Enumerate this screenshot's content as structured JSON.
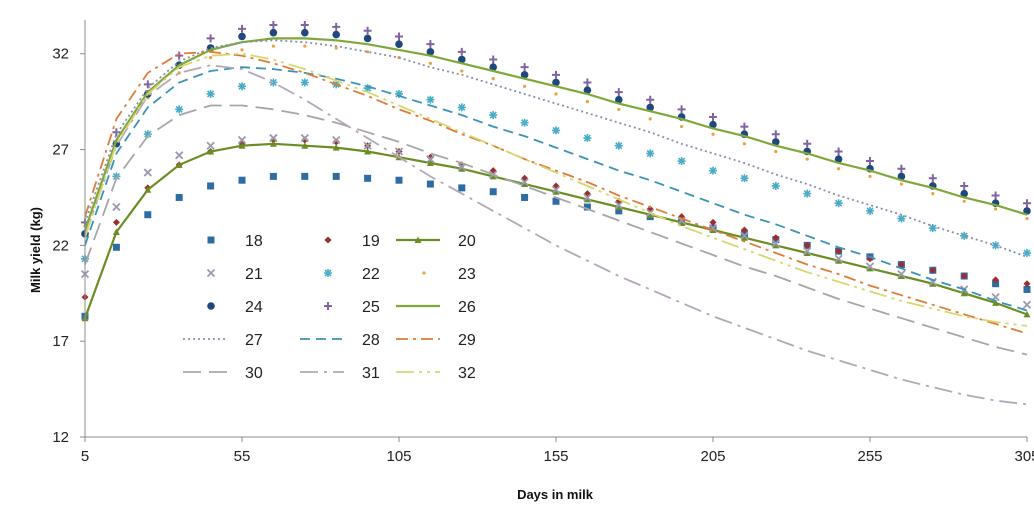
{
  "chart_data": {
    "type": "line",
    "title": "",
    "xlabel": "Days in milk",
    "ylabel": "Milk yield (kg)",
    "xlim": [
      5,
      305
    ],
    "ylim": [
      12,
      33.5
    ],
    "xticks": [
      5,
      55,
      105,
      155,
      205,
      255,
      305
    ],
    "yticks": [
      12,
      17,
      22,
      27,
      32
    ],
    "grid": false,
    "legend_position": "bottom-left",
    "x": [
      5,
      15,
      25,
      35,
      45,
      55,
      65,
      75,
      85,
      95,
      105,
      115,
      125,
      135,
      145,
      155,
      165,
      175,
      185,
      195,
      205,
      215,
      225,
      235,
      245,
      255,
      265,
      275,
      285,
      295,
      305
    ],
    "series": [
      {
        "name": "18",
        "color": "#2e6da4",
        "style": "square-markers",
        "values": [
          18.3,
          21.9,
          23.6,
          24.5,
          25.1,
          25.4,
          25.6,
          25.6,
          25.6,
          25.5,
          25.4,
          25.2,
          25.0,
          24.8,
          24.5,
          24.3,
          24.0,
          23.8,
          23.5,
          23.2,
          22.9,
          22.6,
          22.3,
          22.0,
          21.7,
          21.4,
          21.0,
          20.7,
          20.4,
          20.0,
          19.7
        ]
      },
      {
        "name": "19",
        "color": "#a02d2d",
        "style": "diamond-markers",
        "values": [
          19.3,
          23.2,
          25.0,
          26.2,
          26.9,
          27.3,
          27.5,
          27.5,
          27.4,
          27.2,
          26.9,
          26.6,
          26.2,
          25.9,
          25.5,
          25.1,
          24.7,
          24.3,
          23.9,
          23.5,
          23.2,
          22.8,
          22.4,
          22.0,
          21.7,
          21.3,
          21.0,
          20.7,
          20.4,
          20.2,
          20.0
        ]
      },
      {
        "name": "20",
        "color": "#6b8e23",
        "style": "line-triangle-markers",
        "values": [
          18.2,
          22.7,
          24.9,
          26.2,
          26.9,
          27.2,
          27.3,
          27.2,
          27.1,
          26.9,
          26.6,
          26.3,
          26.0,
          25.6,
          25.2,
          24.8,
          24.4,
          24.0,
          23.6,
          23.2,
          22.8,
          22.4,
          22.0,
          21.6,
          21.2,
          20.8,
          20.4,
          20.0,
          19.5,
          19.0,
          18.4
        ]
      },
      {
        "name": "21",
        "color": "#9a9ab0",
        "style": "x-markers",
        "values": [
          20.5,
          24.0,
          25.8,
          26.7,
          27.2,
          27.5,
          27.6,
          27.6,
          27.5,
          27.2,
          26.9,
          26.5,
          26.1,
          25.7,
          25.3,
          24.9,
          24.5,
          24.1,
          23.7,
          23.3,
          22.9,
          22.5,
          22.1,
          21.7,
          21.3,
          20.9,
          20.5,
          20.1,
          19.7,
          19.3,
          18.9
        ]
      },
      {
        "name": "22",
        "color": "#4bacc6",
        "style": "star-markers",
        "values": [
          21.3,
          25.6,
          27.8,
          29.1,
          29.9,
          30.3,
          30.5,
          30.5,
          30.4,
          30.2,
          29.9,
          29.6,
          29.2,
          28.8,
          28.4,
          28.0,
          27.6,
          27.2,
          26.8,
          26.4,
          25.9,
          25.5,
          25.1,
          24.7,
          24.2,
          23.8,
          23.4,
          22.9,
          22.5,
          22.0,
          21.6
        ]
      },
      {
        "name": "23",
        "color": "#e8a33c",
        "style": "dot-markers",
        "values": [
          23.0,
          27.4,
          29.7,
          31.0,
          31.8,
          32.2,
          32.4,
          32.4,
          32.3,
          32.1,
          31.8,
          31.5,
          31.1,
          30.7,
          30.3,
          29.9,
          29.5,
          29.1,
          28.6,
          28.2,
          27.8,
          27.3,
          26.9,
          26.5,
          26.0,
          25.6,
          25.2,
          24.7,
          24.3,
          23.9,
          23.4
        ]
      },
      {
        "name": "24",
        "color": "#1f497d",
        "style": "circle-markers",
        "values": [
          22.6,
          27.3,
          29.9,
          31.4,
          32.3,
          32.9,
          33.1,
          33.1,
          33.0,
          32.8,
          32.5,
          32.1,
          31.7,
          31.3,
          30.9,
          30.5,
          30.1,
          29.6,
          29.2,
          28.7,
          28.3,
          27.8,
          27.4,
          26.9,
          26.5,
          26.0,
          25.6,
          25.1,
          24.7,
          24.2,
          23.8
        ]
      },
      {
        "name": "25",
        "color": "#8064a2",
        "style": "plus-markers",
        "values": [
          23.2,
          27.9,
          30.4,
          31.9,
          32.8,
          33.3,
          33.5,
          33.5,
          33.4,
          33.2,
          32.9,
          32.5,
          32.1,
          31.7,
          31.3,
          30.9,
          30.5,
          30.0,
          29.6,
          29.1,
          28.7,
          28.2,
          27.8,
          27.3,
          26.9,
          26.4,
          26.0,
          25.5,
          25.1,
          24.6,
          24.2
        ]
      },
      {
        "name": "26",
        "color": "#7fa83a",
        "style": "solid",
        "values": [
          22.8,
          27.5,
          30.0,
          31.4,
          32.2,
          32.6,
          32.8,
          32.8,
          32.7,
          32.5,
          32.2,
          31.9,
          31.5,
          31.1,
          30.7,
          30.3,
          29.9,
          29.4,
          29.0,
          28.6,
          28.1,
          27.7,
          27.2,
          26.8,
          26.3,
          25.9,
          25.4,
          25.0,
          24.5,
          24.1,
          23.6
        ]
      },
      {
        "name": "27",
        "color": "#8a8fa8",
        "style": "dotted",
        "values": [
          23.2,
          27.8,
          30.2,
          31.6,
          32.3,
          32.6,
          32.7,
          32.6,
          32.4,
          32.1,
          31.8,
          31.3,
          30.9,
          30.4,
          29.9,
          29.4,
          28.9,
          28.4,
          27.9,
          27.3,
          26.8,
          26.3,
          25.7,
          25.2,
          24.6,
          24.1,
          23.6,
          23.0,
          22.5,
          22.0,
          21.4
        ]
      },
      {
        "name": "28",
        "color": "#3a93b8",
        "style": "dashed",
        "values": [
          22.0,
          26.8,
          29.2,
          30.5,
          31.1,
          31.3,
          31.2,
          31.0,
          30.7,
          30.3,
          29.8,
          29.3,
          28.8,
          28.2,
          27.7,
          27.1,
          26.5,
          25.9,
          25.4,
          24.8,
          24.2,
          23.6,
          23.1,
          22.5,
          21.9,
          21.4,
          20.8,
          20.2,
          19.7,
          19.1,
          18.6
        ]
      },
      {
        "name": "29",
        "color": "#e07b39",
        "style": "dash-dot",
        "values": [
          23.5,
          28.6,
          31.0,
          32.0,
          32.1,
          31.9,
          31.5,
          31.0,
          30.4,
          29.8,
          29.1,
          28.5,
          27.8,
          27.2,
          26.5,
          25.9,
          25.3,
          24.6,
          24.0,
          23.4,
          22.8,
          22.2,
          21.6,
          21.0,
          20.5,
          19.9,
          19.4,
          18.9,
          18.4,
          17.9,
          17.4
        ]
      },
      {
        "name": "30",
        "color": "#a6a6a6",
        "style": "long-dash",
        "values": [
          21.0,
          25.5,
          27.7,
          28.8,
          29.3,
          29.3,
          29.1,
          28.8,
          28.4,
          27.9,
          27.4,
          26.8,
          26.3,
          25.7,
          25.1,
          24.5,
          23.9,
          23.3,
          22.7,
          22.1,
          21.5,
          20.9,
          20.4,
          19.8,
          19.2,
          18.7,
          18.2,
          17.7,
          17.2,
          16.7,
          16.3
        ]
      },
      {
        "name": "31",
        "color": "#b3a7b8",
        "style": "long-dash-dot",
        "values": [
          22.5,
          27.2,
          29.8,
          31.0,
          31.4,
          31.2,
          30.5,
          29.6,
          28.6,
          27.6,
          26.6,
          25.6,
          24.7,
          23.8,
          22.9,
          22.0,
          21.2,
          20.4,
          19.7,
          19.0,
          18.3,
          17.7,
          17.1,
          16.5,
          16.0,
          15.5,
          15.0,
          14.6,
          14.2,
          13.9,
          13.7
        ]
      },
      {
        "name": "32",
        "color": "#d9d66e",
        "style": "long-dash-dot-dot",
        "values": [
          22.4,
          27.3,
          29.9,
          31.3,
          31.9,
          32.0,
          31.7,
          31.2,
          30.6,
          30.0,
          29.3,
          28.6,
          27.9,
          27.2,
          26.5,
          25.8,
          25.1,
          24.4,
          23.7,
          23.0,
          22.4,
          21.8,
          21.2,
          20.6,
          20.1,
          19.6,
          19.1,
          18.7,
          18.3,
          18.0,
          17.8
        ]
      }
    ]
  }
}
